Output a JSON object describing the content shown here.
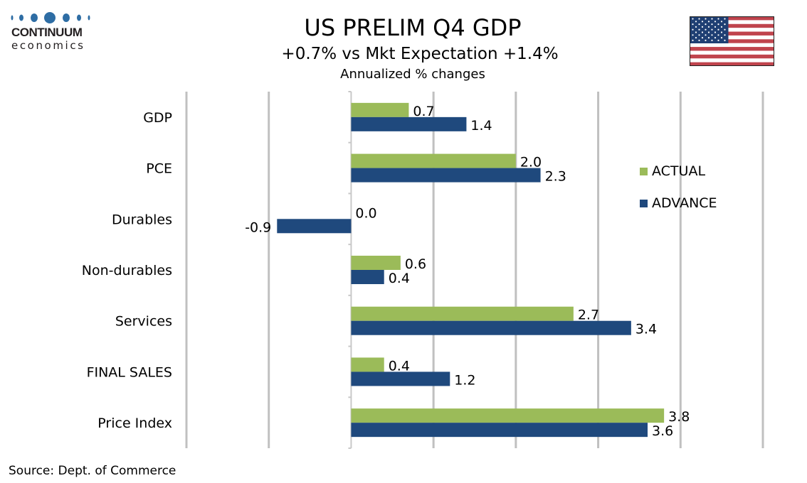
{
  "logo": {
    "word": "CONTINUUM",
    "sub": "economics",
    "color": "#2e6da4"
  },
  "header": {
    "title": "US PRELIM Q4 GDP",
    "subtitle": "+0.7% vs Mkt Expectation +1.4%",
    "subsubtitle": "Annualized % changes"
  },
  "flag": "us-flag",
  "source": "Source: Dept. of Commerce",
  "chart_data": {
    "type": "bar",
    "orientation": "horizontal",
    "title": "US PRELIM Q4 GDP",
    "subtitle": "+0.7% vs Mkt Expectation +1.4%",
    "ylabel": "Annualized % changes",
    "xlabel": "",
    "categories": [
      "GDP",
      "PCE",
      "Durables",
      "Non-durables",
      "Services",
      "FINAL SALES",
      "Price Index"
    ],
    "series": [
      {
        "name": "ACTUAL",
        "color": "#9bbb59",
        "values": [
          0.7,
          2.0,
          0.0,
          0.6,
          2.7,
          0.4,
          3.8
        ],
        "labels": [
          "0.7",
          "2.0",
          "0.0",
          "0.6",
          "2.7",
          "0.4",
          "3.8"
        ]
      },
      {
        "name": "ADVANCE",
        "color": "#1f497d",
        "values": [
          1.4,
          2.3,
          -0.9,
          0.4,
          3.4,
          1.2,
          3.6
        ],
        "labels": [
          "1.4",
          "2.3",
          "-0.9",
          "0.4",
          "3.4",
          "1.2",
          "3.6"
        ]
      }
    ],
    "xlim": [
      -2,
      5
    ],
    "grid": true,
    "tick_labels_shown": false,
    "legend": {
      "position": "right",
      "entries": [
        "ACTUAL",
        "ADVANCE"
      ]
    }
  }
}
